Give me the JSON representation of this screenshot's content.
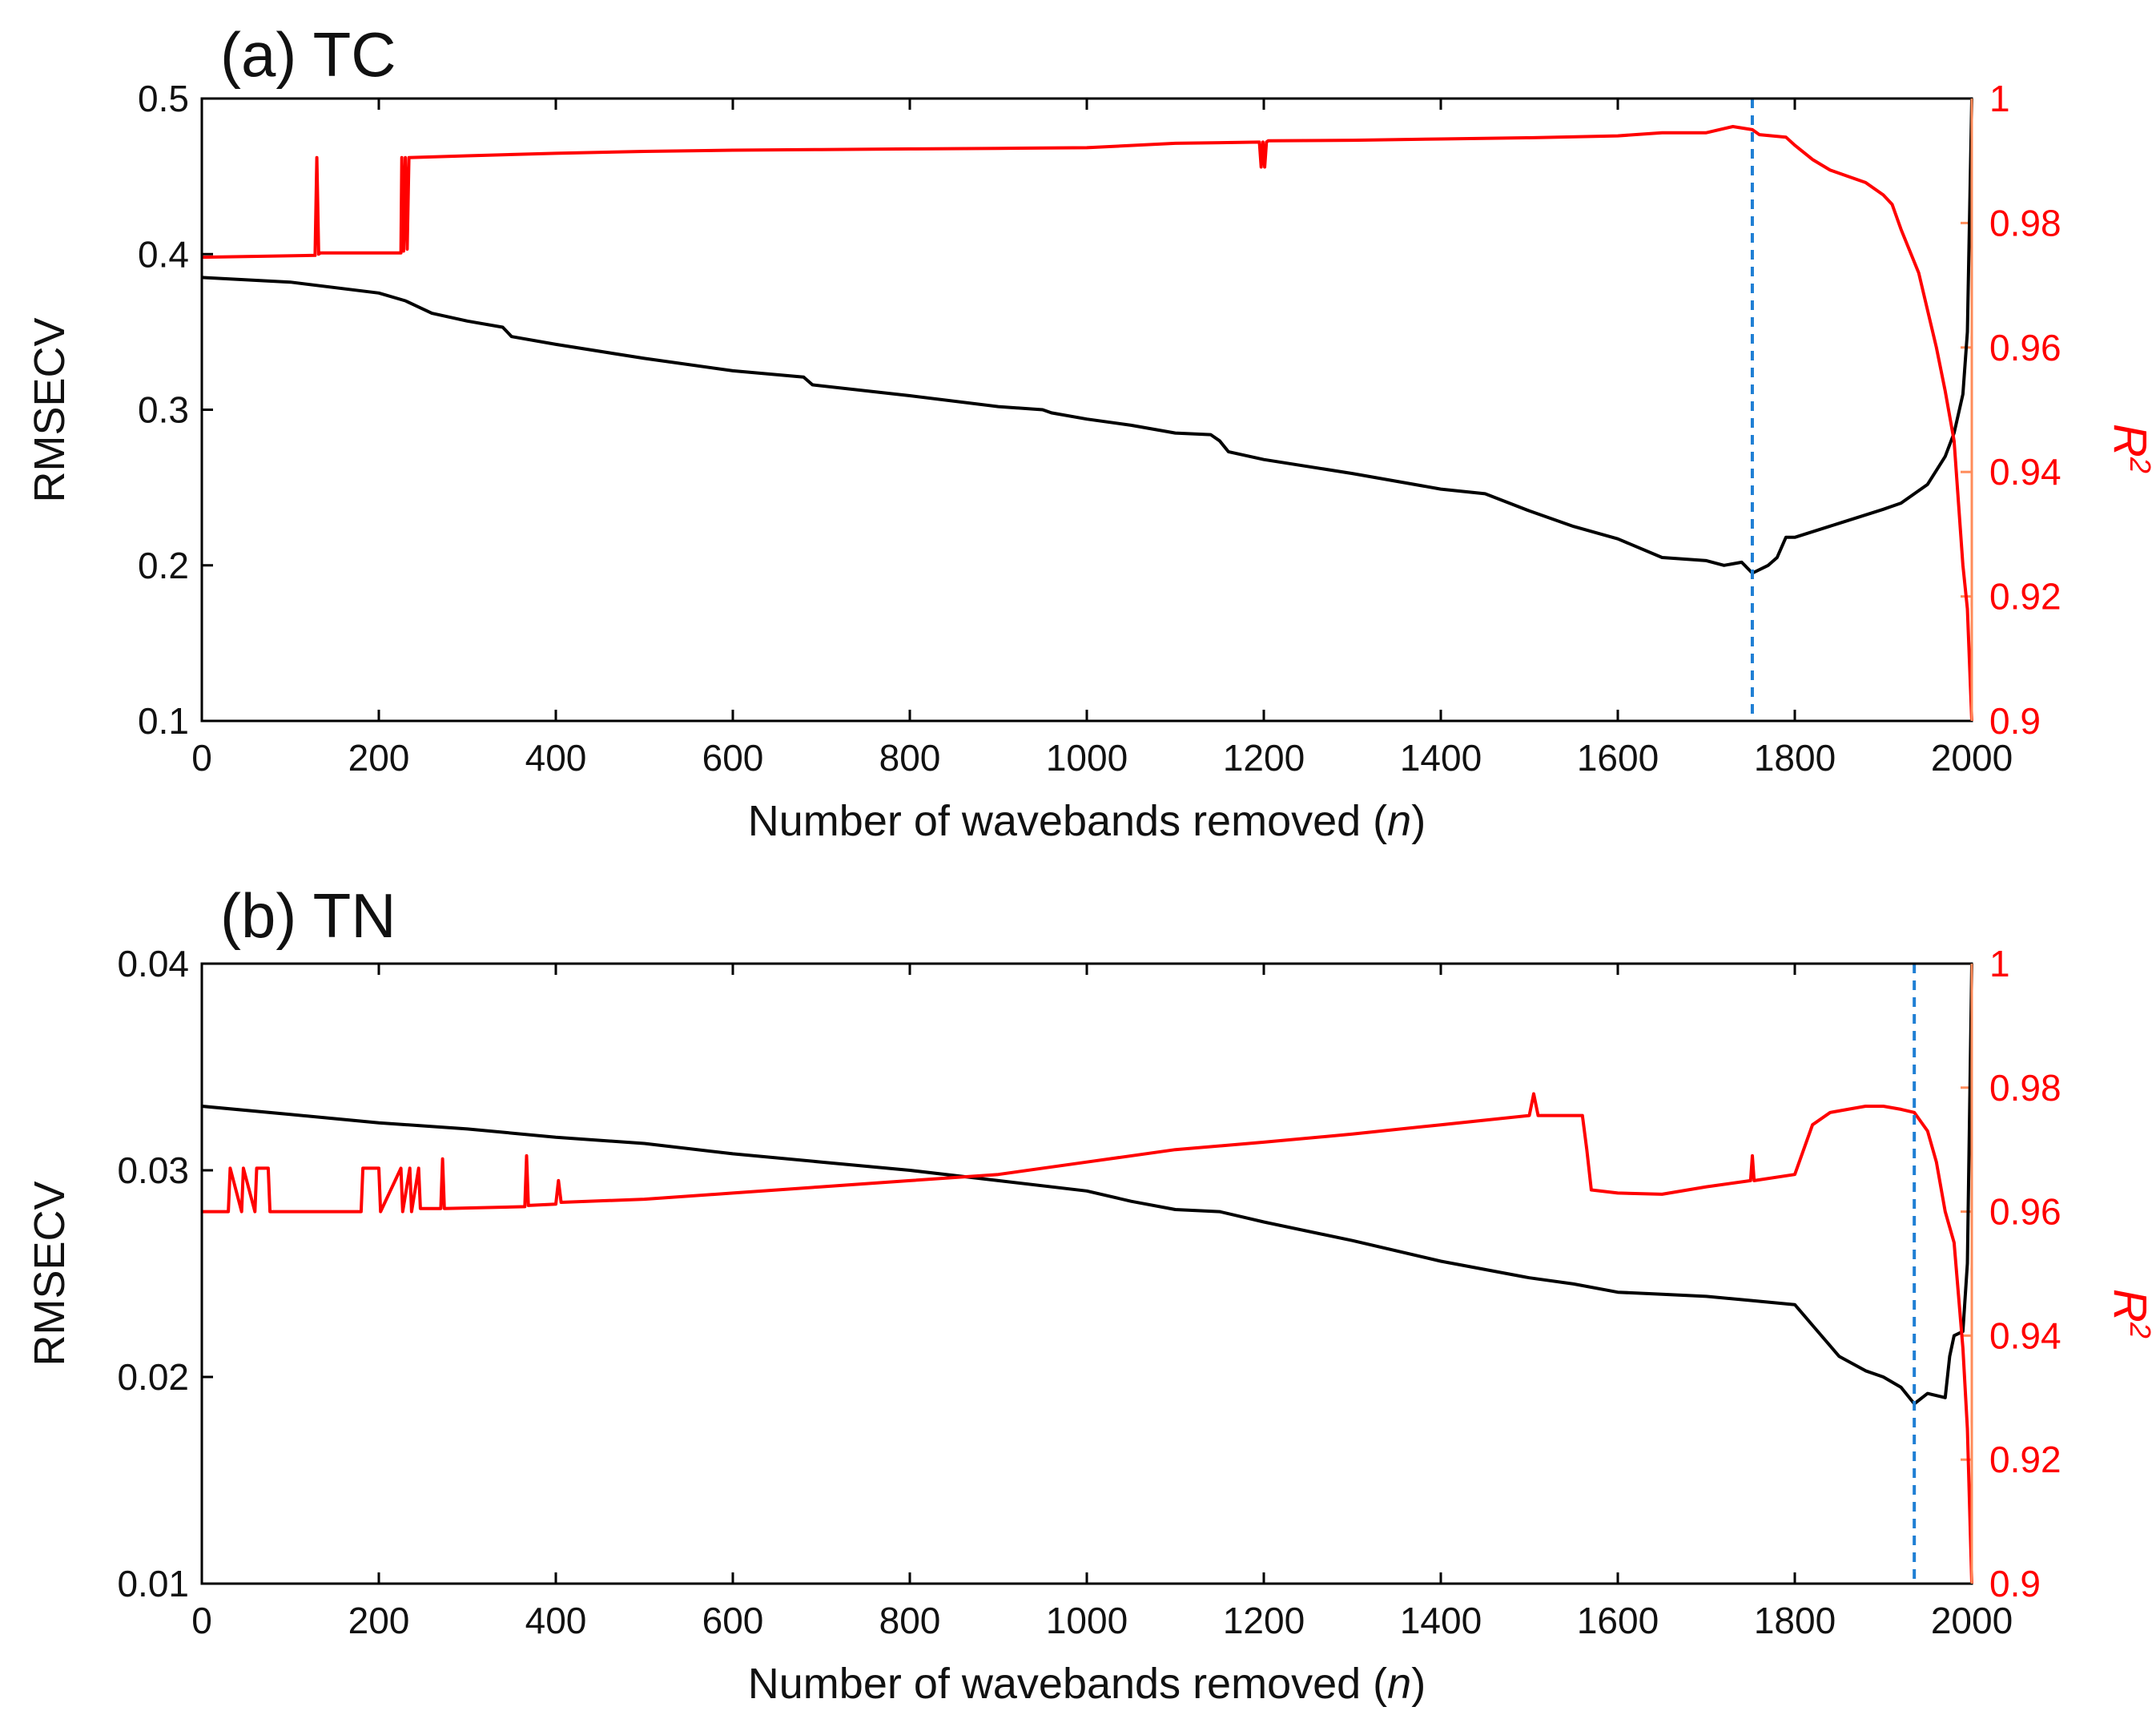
{
  "figure": {
    "background": "#ffffff"
  },
  "colors": {
    "rmse": "#000000",
    "r2": "#ff0000",
    "r2_axis": "#ff8c5a",
    "marker": "#1f7fd4"
  },
  "chart_data": [
    {
      "type": "line",
      "panel": "a",
      "title": "(a) TC",
      "xlabel": "Number of wavebands removed",
      "xlabel_var": "n",
      "ylabel": "RMSECV",
      "y2label_base": "R",
      "y2label_sup": "2",
      "xlim": [
        0,
        2000
      ],
      "ylim": [
        0.1,
        0.5
      ],
      "y2lim": [
        0.9,
        1.0
      ],
      "xticks": [
        0,
        200,
        400,
        600,
        800,
        1000,
        1200,
        1400,
        1600,
        1800,
        2000
      ],
      "xtick_labels": [
        "0",
        "200",
        "400",
        "600",
        "800",
        "1000",
        "1200",
        "1400",
        "1600",
        "1800",
        "2000"
      ],
      "yticks": [
        0.1,
        0.2,
        0.3,
        0.4,
        0.5
      ],
      "ytick_labels": [
        "0.1",
        "0.2",
        "0.3",
        "0.4",
        "0.5"
      ],
      "y2ticks": [
        0.9,
        0.92,
        0.94,
        0.96,
        0.98,
        1.0
      ],
      "y2tick_labels": [
        "0.9",
        "0.92",
        "0.94",
        "0.96",
        "0.98",
        "1"
      ],
      "vline_x": 1752,
      "series": [
        {
          "name": "RMSECV",
          "axis": "left",
          "color": "#000000",
          "x": [
            0,
            100,
            200,
            230,
            260,
            300,
            340,
            350,
            400,
            500,
            600,
            680,
            690,
            800,
            900,
            950,
            960,
            1000,
            1050,
            1100,
            1140,
            1150,
            1160,
            1200,
            1300,
            1400,
            1450,
            1500,
            1550,
            1600,
            1650,
            1700,
            1720,
            1740,
            1752,
            1770,
            1780,
            1790,
            1800,
            1850,
            1900,
            1920,
            1950,
            1970,
            1980,
            1990,
            1995,
            2000
          ],
          "values": [
            0.385,
            0.382,
            0.375,
            0.37,
            0.362,
            0.357,
            0.353,
            0.347,
            0.342,
            0.333,
            0.325,
            0.321,
            0.316,
            0.309,
            0.302,
            0.3,
            0.298,
            0.294,
            0.29,
            0.285,
            0.284,
            0.28,
            0.273,
            0.268,
            0.259,
            0.249,
            0.246,
            0.235,
            0.225,
            0.217,
            0.205,
            0.203,
            0.2,
            0.202,
            0.195,
            0.2,
            0.205,
            0.218,
            0.218,
            0.227,
            0.236,
            0.24,
            0.252,
            0.27,
            0.285,
            0.31,
            0.35,
            0.5
          ]
        },
        {
          "name": "R2",
          "axis": "right",
          "color": "#ff0000",
          "x": [
            0,
            128,
            130,
            132,
            134,
            225,
            226,
            228,
            230,
            232,
            234,
            300,
            400,
            500,
            600,
            700,
            800,
            900,
            1000,
            1100,
            1195,
            1197,
            1199,
            1201,
            1203,
            1205,
            1300,
            1400,
            1500,
            1600,
            1650,
            1700,
            1730,
            1752,
            1760,
            1790,
            1800,
            1820,
            1840,
            1860,
            1880,
            1900,
            1910,
            1920,
            1940,
            1960,
            1970,
            1980,
            1990,
            1995,
            2000
          ],
          "values": [
            0.9745,
            0.9748,
            0.9905,
            0.975,
            0.9752,
            0.9752,
            0.9905,
            0.9755,
            0.9905,
            0.9758,
            0.9905,
            0.9908,
            0.9912,
            0.9915,
            0.9917,
            0.9918,
            0.9919,
            0.992,
            0.9921,
            0.9928,
            0.993,
            0.989,
            0.993,
            0.989,
            0.993,
            0.9932,
            0.9933,
            0.9935,
            0.9937,
            0.994,
            0.9945,
            0.9945,
            0.9955,
            0.995,
            0.9942,
            0.9938,
            0.9925,
            0.9902,
            0.9885,
            0.9875,
            0.9865,
            0.9845,
            0.983,
            0.979,
            0.972,
            0.96,
            0.953,
            0.945,
            0.925,
            0.918,
            0.9
          ]
        }
      ]
    },
    {
      "type": "line",
      "panel": "b",
      "title": "(b) TN",
      "xlabel": "Number of wavebands removed",
      "xlabel_var": "n",
      "ylabel": "RMSECV",
      "y2label_base": "R",
      "y2label_sup": "2",
      "xlim": [
        0,
        2000
      ],
      "ylim": [
        0.01,
        0.04
      ],
      "y2lim": [
        0.9,
        1.0
      ],
      "xticks": [
        0,
        200,
        400,
        600,
        800,
        1000,
        1200,
        1400,
        1600,
        1800,
        2000
      ],
      "xtick_labels": [
        "0",
        "200",
        "400",
        "600",
        "800",
        "1000",
        "1200",
        "1400",
        "1600",
        "1800",
        "2000"
      ],
      "yticks": [
        0.01,
        0.02,
        0.03,
        0.04
      ],
      "ytick_labels": [
        "0.01",
        "0.02",
        "0.03",
        "0.04"
      ],
      "y2ticks": [
        0.9,
        0.92,
        0.94,
        0.96,
        0.98,
        1.0
      ],
      "y2tick_labels": [
        "0.9",
        "0.92",
        "0.94",
        "0.96",
        "0.98",
        "1"
      ],
      "vline_x": 1935,
      "series": [
        {
          "name": "RMSECV",
          "axis": "left",
          "color": "#000000",
          "x": [
            0,
            100,
            200,
            300,
            400,
            500,
            600,
            700,
            800,
            900,
            1000,
            1050,
            1100,
            1150,
            1200,
            1300,
            1400,
            1500,
            1550,
            1600,
            1650,
            1700,
            1750,
            1800,
            1820,
            1850,
            1880,
            1900,
            1920,
            1935,
            1950,
            1970,
            1975,
            1980,
            1990,
            1995,
            2000
          ],
          "values": [
            0.0331,
            0.0327,
            0.0323,
            0.032,
            0.0316,
            0.0313,
            0.0308,
            0.0304,
            0.03,
            0.0295,
            0.029,
            0.0285,
            0.0281,
            0.028,
            0.0275,
            0.0266,
            0.0256,
            0.0248,
            0.0245,
            0.0241,
            0.024,
            0.0239,
            0.0237,
            0.0235,
            0.0225,
            0.021,
            0.0203,
            0.02,
            0.0195,
            0.0187,
            0.0192,
            0.019,
            0.021,
            0.022,
            0.0222,
            0.0255,
            0.04
          ]
        },
        {
          "name": "R2",
          "axis": "right",
          "color": "#ff0000",
          "x": [
            0,
            30,
            32,
            45,
            47,
            60,
            62,
            75,
            77,
            180,
            182,
            200,
            202,
            225,
            227,
            235,
            237,
            245,
            247,
            270,
            272,
            274,
            365,
            367,
            369,
            400,
            403,
            406,
            500,
            600,
            700,
            800,
            900,
            1000,
            1100,
            1200,
            1300,
            1400,
            1500,
            1505,
            1510,
            1560,
            1565,
            1570,
            1600,
            1650,
            1700,
            1750,
            1752,
            1754,
            1800,
            1820,
            1840,
            1860,
            1880,
            1900,
            1920,
            1935,
            1950,
            1960,
            1970,
            1980,
            1990,
            1995,
            2000
          ],
          "values": [
            0.96,
            0.96,
            0.967,
            0.96,
            0.967,
            0.96,
            0.967,
            0.967,
            0.96,
            0.96,
            0.967,
            0.967,
            0.96,
            0.967,
            0.96,
            0.967,
            0.96,
            0.967,
            0.9605,
            0.9605,
            0.9685,
            0.9605,
            0.9608,
            0.969,
            0.961,
            0.9612,
            0.965,
            0.9615,
            0.962,
            0.963,
            0.964,
            0.965,
            0.966,
            0.968,
            0.97,
            0.9712,
            0.9725,
            0.974,
            0.9755,
            0.979,
            0.9755,
            0.9755,
            0.97,
            0.9635,
            0.963,
            0.9628,
            0.964,
            0.965,
            0.969,
            0.965,
            0.966,
            0.974,
            0.976,
            0.9765,
            0.977,
            0.977,
            0.9765,
            0.976,
            0.973,
            0.968,
            0.96,
            0.955,
            0.938,
            0.925,
            0.9
          ]
        }
      ]
    }
  ]
}
